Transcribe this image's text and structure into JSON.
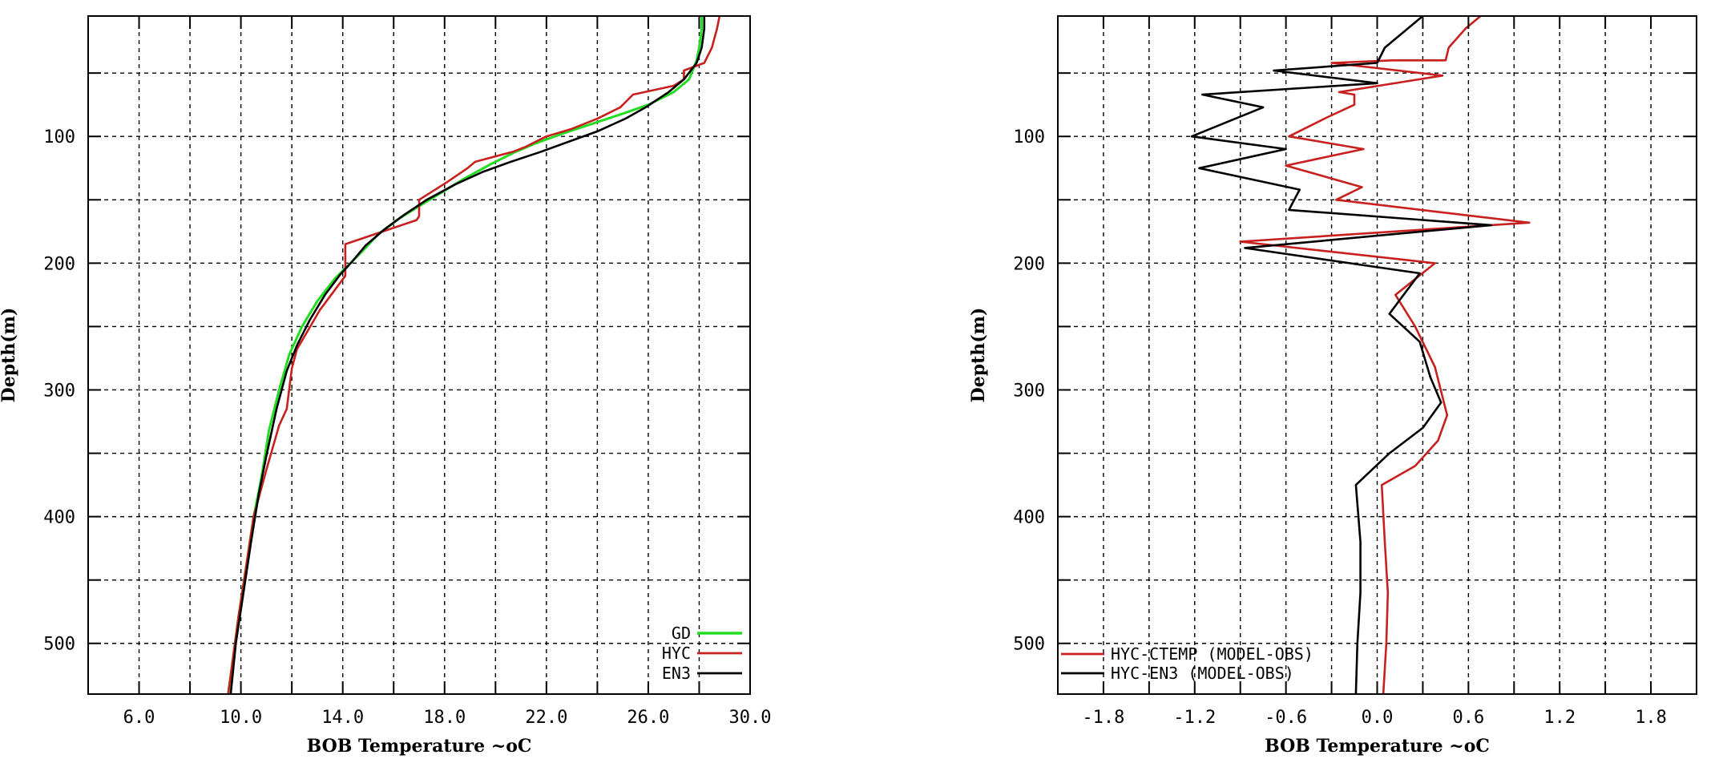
{
  "chart_data": [
    {
      "type": "line",
      "xlabel": "BOB Temperature ~oC",
      "ylabel": "Depth(m)",
      "xlim": [
        4.0,
        30.0
      ],
      "ylim": [
        540,
        5
      ],
      "x_ticks": [
        6,
        10,
        14,
        18,
        22,
        26,
        30
      ],
      "x_tick_labels": [
        "6.0",
        "10.0",
        "14.0",
        "18.0",
        "22.0",
        "26.0",
        "30.0"
      ],
      "x_grid": [
        8,
        12,
        16,
        20,
        24,
        28
      ],
      "y_ticks": [
        100,
        200,
        300,
        400,
        500
      ],
      "y_tick_labels": [
        "100",
        "200",
        "300",
        "400",
        "500"
      ],
      "y_grid": [
        50,
        150,
        250,
        350,
        450
      ],
      "grid": true,
      "legend_position": "bottom-right",
      "colors": {
        "GD": "#22dd22",
        "HYC": "#c8201e",
        "EN3": "#000000"
      },
      "series": [
        {
          "name": "GD",
          "points": [
            [
              28.1,
              5
            ],
            [
              28.1,
              15
            ],
            [
              28.0,
              30
            ],
            [
              27.9,
              40
            ],
            [
              27.6,
              55
            ],
            [
              27.0,
              65
            ],
            [
              26.0,
              75
            ],
            [
              25.0,
              82
            ],
            [
              23.8,
              90
            ],
            [
              22.6,
              98
            ],
            [
              21.5,
              106
            ],
            [
              20.7,
              113
            ],
            [
              19.8,
              122
            ],
            [
              18.8,
              133
            ],
            [
              17.9,
              144
            ],
            [
              17.0,
              155
            ],
            [
              16.2,
              165
            ],
            [
              15.4,
              177
            ],
            [
              14.8,
              190
            ],
            [
              14.3,
              200
            ],
            [
              13.7,
              212
            ],
            [
              13.0,
              230
            ],
            [
              12.4,
              250
            ],
            [
              11.9,
              272
            ],
            [
              11.5,
              300
            ],
            [
              11.1,
              332
            ],
            [
              10.8,
              370
            ],
            [
              10.5,
              400
            ],
            [
              10.2,
              440
            ],
            [
              9.9,
              480
            ],
            [
              9.7,
              510
            ],
            [
              9.5,
              540
            ]
          ]
        },
        {
          "name": "HYC",
          "points": [
            [
              28.8,
              5
            ],
            [
              28.7,
              15
            ],
            [
              28.5,
              30
            ],
            [
              28.2,
              42
            ],
            [
              27.4,
              48
            ],
            [
              27.4,
              55
            ],
            [
              27.0,
              60
            ],
            [
              25.4,
              67
            ],
            [
              24.9,
              77
            ],
            [
              24.0,
              86
            ],
            [
              23.0,
              94
            ],
            [
              22.0,
              100
            ],
            [
              21.2,
              108
            ],
            [
              20.7,
              112
            ],
            [
              19.2,
              120
            ],
            [
              18.9,
              125
            ],
            [
              18.1,
              136
            ],
            [
              17.0,
              150
            ],
            [
              17.0,
              163
            ],
            [
              16.9,
              166
            ],
            [
              14.1,
              185
            ],
            [
              14.1,
              210
            ],
            [
              13.1,
              237
            ],
            [
              12.2,
              268
            ],
            [
              12.0,
              283
            ],
            [
              11.8,
              315
            ],
            [
              11.5,
              328
            ],
            [
              11.0,
              363
            ],
            [
              10.5,
              400
            ],
            [
              10.2,
              440
            ],
            [
              9.9,
              480
            ],
            [
              9.7,
              510
            ],
            [
              9.5,
              540
            ]
          ]
        },
        {
          "name": "EN3",
          "points": [
            [
              28.2,
              5
            ],
            [
              28.2,
              15
            ],
            [
              28.1,
              30
            ],
            [
              27.9,
              42
            ],
            [
              27.4,
              55
            ],
            [
              26.8,
              65
            ],
            [
              25.9,
              77
            ],
            [
              25.1,
              86
            ],
            [
              24.0,
              96
            ],
            [
              22.9,
              104
            ],
            [
              21.8,
              112
            ],
            [
              20.6,
              120
            ],
            [
              19.5,
              128
            ],
            [
              18.4,
              138
            ],
            [
              17.3,
              150
            ],
            [
              16.4,
              162
            ],
            [
              15.6,
              174
            ],
            [
              14.9,
              186
            ],
            [
              14.4,
              198
            ],
            [
              13.9,
              209
            ],
            [
              13.3,
              225
            ],
            [
              12.7,
              245
            ],
            [
              12.2,
              265
            ],
            [
              11.8,
              285
            ],
            [
              11.4,
              315
            ],
            [
              11.0,
              352
            ],
            [
              10.7,
              382
            ],
            [
              10.4,
              420
            ],
            [
              10.1,
              460
            ],
            [
              9.8,
              500
            ],
            [
              9.6,
              540
            ]
          ]
        }
      ]
    },
    {
      "type": "line",
      "xlabel": "BOB Temperature ~oC",
      "ylabel": "Depth(m)",
      "xlim": [
        -2.1,
        2.1
      ],
      "ylim": [
        540,
        5
      ],
      "x_ticks": [
        -1.8,
        -1.2,
        -0.6,
        0.0,
        0.6,
        1.2,
        1.8
      ],
      "x_tick_labels": [
        "-1.8",
        "-1.2",
        "-0.6",
        "0.0",
        "0.6",
        "1.2",
        "1.8"
      ],
      "x_grid": [
        -1.5,
        -0.9,
        -0.3,
        0.3,
        0.9,
        1.5
      ],
      "y_ticks": [
        100,
        200,
        300,
        400,
        500
      ],
      "y_tick_labels": [
        "100",
        "200",
        "300",
        "400",
        "500"
      ],
      "y_grid": [
        50,
        150,
        250,
        350,
        450
      ],
      "grid": true,
      "legend_position": "bottom-left",
      "colors": {
        "HYC-CTEMP (MODEL-OBS)": "#c8201e",
        "HYC-EN3 (MODEL-OBS)": "#000000"
      },
      "series": [
        {
          "name": "HYC-CTEMP (MODEL-OBS)",
          "points": [
            [
              0.68,
              5
            ],
            [
              0.58,
              15
            ],
            [
              0.47,
              30
            ],
            [
              0.45,
              40
            ],
            [
              0.1,
              40
            ],
            [
              -0.3,
              42
            ],
            [
              0.43,
              52
            ],
            [
              -0.25,
              65
            ],
            [
              -0.15,
              67
            ],
            [
              -0.15,
              75
            ],
            [
              -0.33,
              85
            ],
            [
              -0.58,
              100
            ],
            [
              -0.09,
              110
            ],
            [
              -0.6,
              123
            ],
            [
              -0.1,
              140
            ],
            [
              -0.27,
              150
            ],
            [
              1.0,
              168
            ],
            [
              -0.9,
              183
            ],
            [
              0.38,
              200
            ],
            [
              0.12,
              225
            ],
            [
              0.25,
              250
            ],
            [
              0.38,
              282
            ],
            [
              0.46,
              320
            ],
            [
              0.4,
              340
            ],
            [
              0.25,
              360
            ],
            [
              0.03,
              375
            ],
            [
              0.05,
              420
            ],
            [
              0.07,
              460
            ],
            [
              0.06,
              500
            ],
            [
              0.04,
              540
            ]
          ]
        },
        {
          "name": "HYC-EN3 (MODEL-OBS)",
          "points": [
            [
              0.3,
              5
            ],
            [
              0.2,
              15
            ],
            [
              0.05,
              30
            ],
            [
              0.0,
              42
            ],
            [
              -0.68,
              48
            ],
            [
              0.0,
              58
            ],
            [
              -1.15,
              67
            ],
            [
              -0.75,
              77
            ],
            [
              -1.22,
              100
            ],
            [
              -0.6,
              110
            ],
            [
              -1.17,
              125
            ],
            [
              -0.51,
              142
            ],
            [
              -0.58,
              158
            ],
            [
              0.75,
              170
            ],
            [
              -0.87,
              188
            ],
            [
              0.28,
              208
            ],
            [
              0.08,
              240
            ],
            [
              0.28,
              262
            ],
            [
              0.35,
              290
            ],
            [
              0.42,
              310
            ],
            [
              0.3,
              330
            ],
            [
              0.08,
              350
            ],
            [
              -0.14,
              375
            ],
            [
              -0.11,
              420
            ],
            [
              -0.11,
              460
            ],
            [
              -0.13,
              500
            ],
            [
              -0.14,
              540
            ]
          ]
        }
      ]
    }
  ]
}
